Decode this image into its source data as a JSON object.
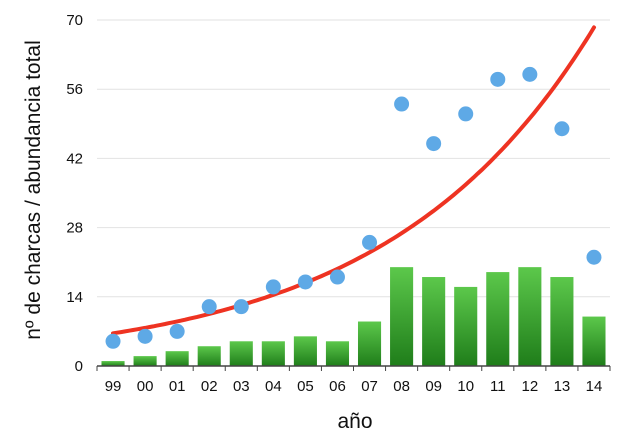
{
  "chart_data": {
    "type": "bar",
    "xlabel": "año",
    "ylabel": "nº de charcas / abundancia total",
    "categories": [
      "99",
      "00",
      "01",
      "02",
      "03",
      "04",
      "05",
      "06",
      "07",
      "08",
      "09",
      "10",
      "11",
      "12",
      "13",
      "14"
    ],
    "ylim": [
      0,
      70
    ],
    "yticks": [
      "0",
      "14",
      "28",
      "42",
      "56",
      "70"
    ],
    "grid": true,
    "series": [
      {
        "kind": "bar",
        "values": [
          1,
          2,
          3,
          4,
          5,
          5,
          6,
          5,
          9,
          20,
          18,
          16,
          19,
          20,
          18,
          10
        ]
      },
      {
        "kind": "scatter",
        "values": [
          5,
          6,
          7,
          12,
          12,
          16,
          17,
          18,
          25,
          53,
          45,
          51,
          58,
          59,
          48,
          22
        ]
      },
      {
        "kind": "trendline",
        "trend_type": "exponential",
        "start_value": 6.6,
        "end_value": 68.5
      }
    ],
    "colors": {
      "bar_top": "#5cc84b",
      "bar_bottom": "#1f7d1a",
      "point": "#5ea9e6",
      "trend": "#ee3322",
      "grid": "#e2e2e2",
      "axis": "#444444"
    }
  }
}
